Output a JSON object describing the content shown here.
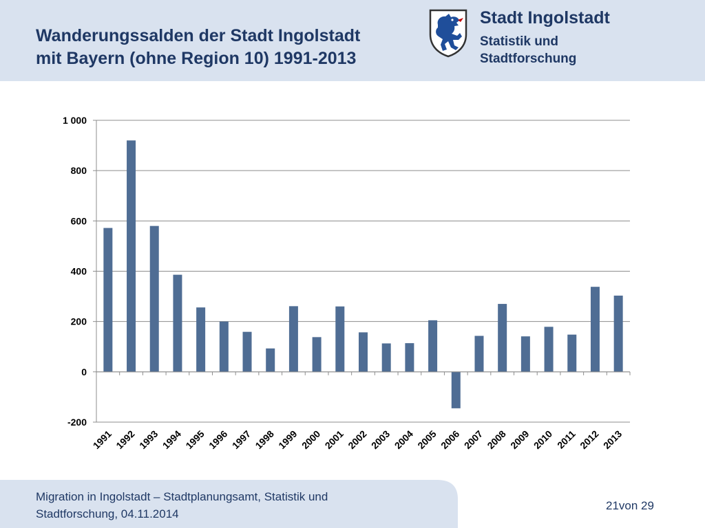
{
  "header": {
    "title_line1": "Wanderungssalden der Stadt Ingolstadt",
    "title_line2": "mit Bayern (ohne Region 10) 1991-2013",
    "org_name": "Stadt Ingolstadt",
    "org_dept_line1": "Statistik und",
    "org_dept_line2": "Stadtforschung",
    "logo_icon": "ingolstadt-panther-crest-icon"
  },
  "colors": {
    "header_bg": "#d9e2ef",
    "bar": "#4f6d94",
    "text": "#1f3864"
  },
  "chart_data": {
    "type": "bar",
    "title": "",
    "xlabel": "",
    "ylabel": "",
    "categories": [
      "1991",
      "1992",
      "1993",
      "1994",
      "1995",
      "1996",
      "1997",
      "1998",
      "1999",
      "2000",
      "2001",
      "2002",
      "2003",
      "2004",
      "2005",
      "2006",
      "2007",
      "2008",
      "2009",
      "2010",
      "2011",
      "2012",
      "2013"
    ],
    "values": [
      572,
      920,
      580,
      386,
      256,
      200,
      159,
      93,
      261,
      138,
      260,
      157,
      113,
      114,
      205,
      -145,
      143,
      270,
      141,
      179,
      148,
      338,
      303
    ],
    "ylim": [
      -200,
      1000
    ],
    "yticks": [
      -200,
      0,
      200,
      400,
      600,
      800,
      1000
    ],
    "ytick_labels": [
      "-200",
      "0",
      "200",
      "400",
      "600",
      "800",
      "1 000"
    ],
    "grid": true,
    "legend": "none"
  },
  "footer": {
    "text_line1": "Migration in Ingolstadt – Stadtplanungsamt, Statistik und",
    "text_line2": "Stadtforschung, 04.11.2014",
    "page_number": "21von 29"
  }
}
